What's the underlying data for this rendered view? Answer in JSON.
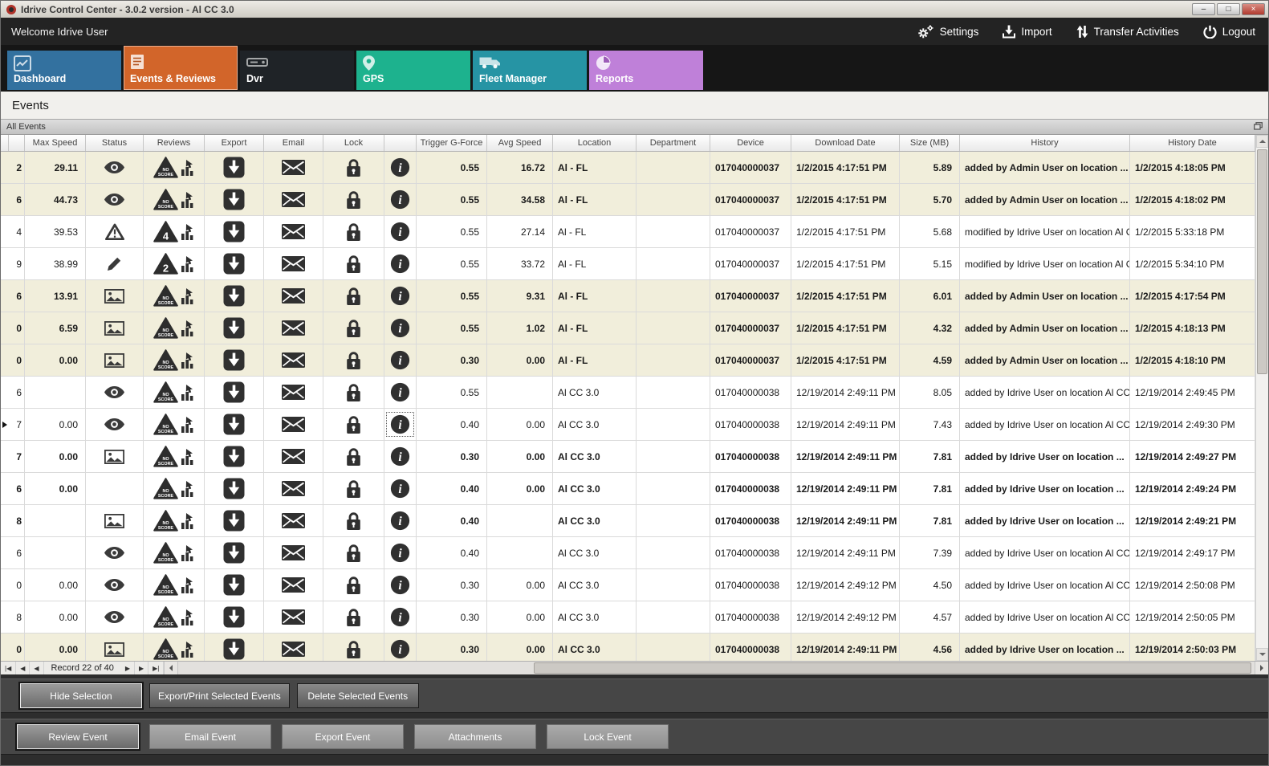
{
  "window": {
    "title": "Idrive Control Center - 3.0.2 version - Al CC 3.0",
    "controls": {
      "minimize": "–",
      "maximize": "□",
      "close": "×"
    }
  },
  "header": {
    "welcome": "Welcome Idrive User",
    "actions": [
      {
        "label": "Settings",
        "icon": "settings-gear-icon"
      },
      {
        "label": "Import",
        "icon": "import-icon"
      },
      {
        "label": "Transfer Activities",
        "icon": "transfer-activities-icon"
      },
      {
        "label": "Logout",
        "icon": "logout-power-icon"
      }
    ]
  },
  "tabs": [
    {
      "label": "Dashboard",
      "color": "#33719f",
      "icon": "dashboard-chart-icon",
      "active": false
    },
    {
      "label": "Events & Reviews",
      "color": "#d2652a",
      "icon": "events-reviews-icon",
      "active": true
    },
    {
      "label": "Dvr",
      "color": "#1f2327",
      "icon": "dvr-device-icon",
      "active": false
    },
    {
      "label": "GPS",
      "color": "#1db28e",
      "icon": "gps-pin-icon",
      "active": false
    },
    {
      "label": "Fleet Manager",
      "color": "#2694a4",
      "icon": "fleet-truck-icon",
      "active": false
    },
    {
      "label": "Reports",
      "color": "#bf80d9",
      "icon": "reports-pie-icon",
      "active": false
    }
  ],
  "page_title": "Events",
  "panel_title": "All Events",
  "colors": {
    "unread_row": "#f1eedb",
    "accent_orange": "#d2652a"
  },
  "grid": {
    "columns": [
      "Max Speed",
      "Status",
      "Reviews",
      "Export",
      "Email",
      "Lock",
      "",
      "Trigger G-Force",
      "Avg Speed",
      "Location",
      "Department",
      "Device",
      "Download Date",
      "Size (MB)",
      "History",
      "History Date"
    ],
    "rows": [
      {
        "id": "2",
        "marker": false,
        "focus": false,
        "style": "new",
        "max_speed": "29.11",
        "status": "eye",
        "review": "NO SCORE",
        "trigger": "0.55",
        "avg_speed": "16.72",
        "location": "Al - FL",
        "department": "",
        "device": "017040000037",
        "download_date": "1/2/2015 4:17:51 PM",
        "size": "5.89",
        "history": "added by Admin User on location ...",
        "history_date": "1/2/2015 4:18:05 PM"
      },
      {
        "id": "6",
        "marker": false,
        "focus": false,
        "style": "new",
        "max_speed": "44.73",
        "status": "eye",
        "review": "NO SCORE",
        "trigger": "0.55",
        "avg_speed": "34.58",
        "location": "Al - FL",
        "department": "",
        "device": "017040000037",
        "download_date": "1/2/2015 4:17:51 PM",
        "size": "5.70",
        "history": "added by Admin User on location ...",
        "history_date": "1/2/2015 4:18:02 PM"
      },
      {
        "id": "4",
        "marker": false,
        "focus": false,
        "style": "normal",
        "max_speed": "39.53",
        "status": "warning",
        "review": "4",
        "trigger": "0.55",
        "avg_speed": "27.14",
        "location": "Al - FL",
        "department": "",
        "device": "017040000037",
        "download_date": "1/2/2015 4:17:51 PM",
        "size": "5.68",
        "history": "modified by Idrive User on location Al C...",
        "history_date": "1/2/2015 5:33:18 PM"
      },
      {
        "id": "9",
        "marker": false,
        "focus": false,
        "style": "normal",
        "max_speed": "38.99",
        "status": "pencil",
        "review": "2",
        "trigger": "0.55",
        "avg_speed": "33.72",
        "location": "Al - FL",
        "department": "",
        "device": "017040000037",
        "download_date": "1/2/2015 4:17:51 PM",
        "size": "5.15",
        "history": "modified by Idrive User on location Al C...",
        "history_date": "1/2/2015 5:34:10 PM"
      },
      {
        "id": "6",
        "marker": false,
        "focus": false,
        "style": "new",
        "max_speed": "13.91",
        "status": "picture",
        "review": "NO SCORE",
        "trigger": "0.55",
        "avg_speed": "9.31",
        "location": "Al - FL",
        "department": "",
        "device": "017040000037",
        "download_date": "1/2/2015 4:17:51 PM",
        "size": "6.01",
        "history": "added by Admin User on location ...",
        "history_date": "1/2/2015 4:17:54 PM"
      },
      {
        "id": "0",
        "marker": false,
        "focus": false,
        "style": "new",
        "max_speed": "6.59",
        "status": "picture",
        "review": "NO SCORE",
        "trigger": "0.55",
        "avg_speed": "1.02",
        "location": "Al - FL",
        "department": "",
        "device": "017040000037",
        "download_date": "1/2/2015 4:17:51 PM",
        "size": "4.32",
        "history": "added by Admin User on location ...",
        "history_date": "1/2/2015 4:18:13 PM"
      },
      {
        "id": "0",
        "marker": false,
        "focus": false,
        "style": "new",
        "max_speed": "0.00",
        "status": "picture",
        "review": "NO SCORE",
        "trigger": "0.30",
        "avg_speed": "0.00",
        "location": "Al - FL",
        "department": "",
        "device": "017040000037",
        "download_date": "1/2/2015 4:17:51 PM",
        "size": "4.59",
        "history": "added by Admin User on location ...",
        "history_date": "1/2/2015 4:18:10 PM"
      },
      {
        "id": "6",
        "marker": false,
        "focus": false,
        "style": "normal",
        "max_speed": "",
        "status": "eye",
        "review": "NO SCORE",
        "trigger": "0.55",
        "avg_speed": "",
        "location": "Al CC 3.0",
        "department": "",
        "device": "017040000038",
        "download_date": "12/19/2014 2:49:11 PM",
        "size": "8.05",
        "history": "added by Idrive User on location Al CC ...",
        "history_date": "12/19/2014 2:49:45 PM"
      },
      {
        "id": "7",
        "marker": true,
        "focus": true,
        "style": "normal",
        "max_speed": "0.00",
        "status": "eye",
        "review": "NO SCORE",
        "trigger": "0.40",
        "avg_speed": "0.00",
        "location": "Al CC 3.0",
        "department": "",
        "device": "017040000038",
        "download_date": "12/19/2014 2:49:11 PM",
        "size": "7.43",
        "history": "added by Idrive User on location Al CC ...",
        "history_date": "12/19/2014 2:49:30 PM"
      },
      {
        "id": "7",
        "marker": false,
        "focus": false,
        "style": "bold",
        "max_speed": "0.00",
        "status": "picture",
        "review": "NO SCORE",
        "trigger": "0.30",
        "avg_speed": "0.00",
        "location": "Al CC 3.0",
        "department": "",
        "device": "017040000038",
        "download_date": "12/19/2014 2:49:11 PM",
        "size": "7.81",
        "history": "added by Idrive User on location ...",
        "history_date": "12/19/2014 2:49:27 PM"
      },
      {
        "id": "6",
        "marker": false,
        "focus": false,
        "style": "bold",
        "max_speed": "0.00",
        "status": "none",
        "review": "NO SCORE",
        "trigger": "0.40",
        "avg_speed": "0.00",
        "location": "Al CC 3.0",
        "department": "",
        "device": "017040000038",
        "download_date": "12/19/2014 2:49:11 PM",
        "size": "7.81",
        "history": "added by Idrive User on location ...",
        "history_date": "12/19/2014 2:49:24 PM"
      },
      {
        "id": "8",
        "marker": false,
        "focus": false,
        "style": "bold",
        "max_speed": "",
        "status": "picture",
        "review": "NO SCORE",
        "trigger": "0.40",
        "avg_speed": "",
        "location": "Al CC 3.0",
        "department": "",
        "device": "017040000038",
        "download_date": "12/19/2014 2:49:11 PM",
        "size": "7.81",
        "history": "added by Idrive User on location ...",
        "history_date": "12/19/2014 2:49:21 PM"
      },
      {
        "id": "6",
        "marker": false,
        "focus": false,
        "style": "normal",
        "max_speed": "",
        "status": "eye",
        "review": "NO SCORE",
        "trigger": "0.40",
        "avg_speed": "",
        "location": "Al CC 3.0",
        "department": "",
        "device": "017040000038",
        "download_date": "12/19/2014 2:49:11 PM",
        "size": "7.39",
        "history": "added by Idrive User on location Al CC ...",
        "history_date": "12/19/2014 2:49:17 PM"
      },
      {
        "id": "0",
        "marker": false,
        "focus": false,
        "style": "normal",
        "max_speed": "0.00",
        "status": "eye",
        "review": "NO SCORE",
        "trigger": "0.30",
        "avg_speed": "0.00",
        "location": "Al CC 3.0",
        "department": "",
        "device": "017040000038",
        "download_date": "12/19/2014 2:49:12 PM",
        "size": "4.50",
        "history": "added by Idrive User on location Al CC ...",
        "history_date": "12/19/2014 2:50:08 PM"
      },
      {
        "id": "8",
        "marker": false,
        "focus": false,
        "style": "normal",
        "max_speed": "0.00",
        "status": "eye",
        "review": "NO SCORE",
        "trigger": "0.30",
        "avg_speed": "0.00",
        "location": "Al CC 3.0",
        "department": "",
        "device": "017040000038",
        "download_date": "12/19/2014 2:49:12 PM",
        "size": "4.57",
        "history": "added by Idrive User on location Al CC ...",
        "history_date": "12/19/2014 2:50:05 PM"
      },
      {
        "id": "0",
        "marker": false,
        "focus": false,
        "style": "new",
        "max_speed": "0.00",
        "status": "picture",
        "review": "NO SCORE",
        "trigger": "0.30",
        "avg_speed": "0.00",
        "location": "Al CC 3.0",
        "department": "",
        "device": "017040000038",
        "download_date": "12/19/2014 2:49:11 PM",
        "size": "4.56",
        "history": "added by Idrive User on location ...",
        "history_date": "12/19/2014 2:50:03 PM"
      }
    ]
  },
  "navigator": {
    "label": "Record 22 of 40",
    "left_buttons": [
      "|◀",
      "◀",
      "◀"
    ],
    "right_buttons": [
      "▶",
      "▶",
      "▶|"
    ]
  },
  "action_bars": [
    {
      "buttons": [
        "Hide Selection",
        "Export/Print Selected Events",
        "Delete Selected  Events"
      ]
    },
    {
      "buttons": [
        "Review Event",
        "Email Event",
        "Export Event",
        "Attachments",
        "Lock Event"
      ]
    }
  ]
}
